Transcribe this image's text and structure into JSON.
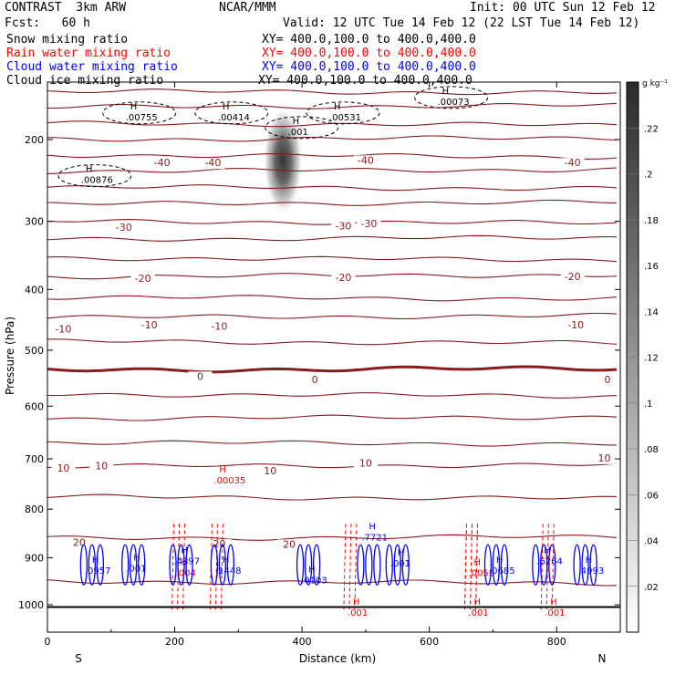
{
  "header": {
    "model": "CONTRAST  3km ARW",
    "center": "NCAR/MMM",
    "init": "Init: 00 UTC Sun 12 Feb 12",
    "fcst": "Fcst:   60 h",
    "valid": "Valid: 12 UTC Tue 14 Feb 12 (22 LST Tue 14 Feb 12)"
  },
  "fields": [
    {
      "label": "Snow mixing ratio",
      "xy": "XY= 400.0,100.0 to 400.0,400.0",
      "color": "#000000"
    },
    {
      "label": "Rain water mixing ratio",
      "xy": "XY= 400.0,100.0 to 400.0,400.0",
      "color": "#ff0000"
    },
    {
      "label": "Cloud water mixing ratio",
      "xy": "XY= 400.0,100.0 to 400.0,400.0",
      "color": "#0000ff"
    },
    {
      "label": "Cloud ice mixing ratio",
      "xy": "XY= 400.0,100.0 to 400.0,400.0",
      "color": "#000000"
    }
  ],
  "chart_data": {
    "type": "contour cross-section",
    "xlabel": "Distance (km)",
    "ylabel": "Pressure (hPa)",
    "xlim": [
      0,
      900
    ],
    "ylim": [
      1050,
      100
    ],
    "x_ticks": [
      0,
      200,
      400,
      600,
      800
    ],
    "y_ticks": [
      200,
      300,
      400,
      500,
      600,
      700,
      800,
      900,
      1000
    ],
    "end_labels": {
      "left": "S",
      "right": "N"
    },
    "colorbar": {
      "unit": "g kg⁻¹",
      "ticks": [
        ".02",
        ".04",
        ".06",
        ".08",
        ".1",
        ".12",
        ".14",
        ".16",
        ".18",
        ".2",
        ".22"
      ],
      "range": [
        0,
        0.24
      ]
    },
    "temperature_contours": {
      "color": "#8b1a1a",
      "labeled_levels": [
        {
          "value": "-40",
          "at": [
            [
              180,
              230
            ],
            [
              260,
              230
            ],
            [
              500,
              227
            ],
            [
              825,
              230
            ]
          ]
        },
        {
          "value": "-30",
          "at": [
            [
              120,
              313
            ],
            [
              465,
              311
            ],
            [
              505,
              308
            ]
          ]
        },
        {
          "value": "-20",
          "at": [
            [
              150,
              388
            ],
            [
              465,
              387
            ],
            [
              825,
              385
            ]
          ]
        },
        {
          "value": "-10",
          "at": [
            [
              25,
              470
            ],
            [
              160,
              463
            ],
            [
              270,
              465
            ],
            [
              830,
              463
            ]
          ]
        },
        {
          "value": "0",
          "at": [
            [
              240,
              552
            ],
            [
              420,
              558
            ],
            [
              880,
              558
            ]
          ]
        },
        {
          "value": "10",
          "at": [
            [
              25,
              725
            ],
            [
              85,
              720
            ],
            [
              350,
              730
            ],
            [
              500,
              715
            ],
            [
              875,
              705
            ]
          ]
        },
        {
          "value": "20",
          "at": [
            [
              50,
              875
            ],
            [
              270,
              878
            ],
            [
              380,
              879
            ]
          ]
        }
      ],
      "freezing_level_hPa": 535,
      "lines_hPa": [
        123,
        137,
        152,
        167,
        183,
        200,
        217,
        236,
        255,
        277,
        300,
        325,
        352,
        380,
        412,
        445,
        485,
        535,
        578,
        623,
        668,
        715,
        775,
        860,
        950
      ]
    },
    "snow_maxima": [
      {
        "label": ".00755",
        "distance_km": 130,
        "pressure_hPa": 178
      },
      {
        "label": ".00414",
        "distance_km": 275,
        "pressure_hPa": 178
      },
      {
        "label": ".00531",
        "distance_km": 450,
        "pressure_hPa": 178
      },
      {
        "label": ".00073",
        "distance_km": 620,
        "pressure_hPa": 163
      },
      {
        "label": ".00876",
        "distance_km": 60,
        "pressure_hPa": 248
      },
      {
        "label": ".001",
        "distance_km": 385,
        "pressure_hPa": 193
      }
    ],
    "cloud_ice_max": {
      "distance_km": 370,
      "pressure_hPa": 230,
      "value": 0.23
    },
    "rain_maxima": [
      {
        "label": ".00035",
        "distance_km": 270,
        "pressure_hPa": 745
      },
      {
        "label": ".004",
        "distance_km": 210,
        "pressure_hPa": 935
      },
      {
        "label": ".001",
        "distance_km": 670,
        "pressure_hPa": 1020
      },
      {
        "label": ".001",
        "distance_km": 480,
        "pressure_hPa": 1020
      },
      {
        "label": ".001",
        "distance_km": 790,
        "pressure_hPa": 1020
      },
      {
        "label": ".0055",
        "distance_km": 670,
        "pressure_hPa": 935
      }
    ],
    "cloud_water_maxima": [
      {
        "label": ".0957",
        "distance_km": 70,
        "pressure_hPa": 930
      },
      {
        "label": ".001",
        "distance_km": 135,
        "pressure_hPa": 925
      },
      {
        "label": ".4397",
        "distance_km": 210,
        "pressure_hPa": 910
      },
      {
        "label": ".1448",
        "distance_km": 275,
        "pressure_hPa": 930
      },
      {
        "label": ".0103",
        "distance_km": 410,
        "pressure_hPa": 950
      },
      {
        "label": ".7721",
        "distance_km": 505,
        "pressure_hPa": 860
      },
      {
        "label": ".001",
        "distance_km": 550,
        "pressure_hPa": 915
      },
      {
        "label": ".0685",
        "distance_km": 705,
        "pressure_hPa": 930
      },
      {
        "label": ".6264",
        "distance_km": 780,
        "pressure_hPa": 910
      },
      {
        "label": ".4993",
        "distance_km": 845,
        "pressure_hPa": 930
      }
    ],
    "surface_pressure_hPa": 1005
  }
}
